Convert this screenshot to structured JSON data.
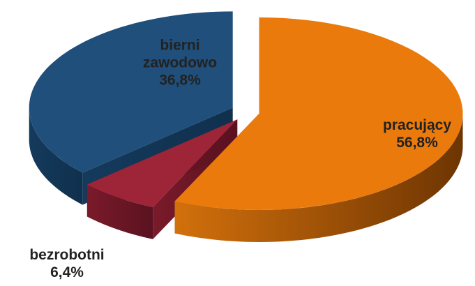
{
  "chart_data": {
    "type": "pie",
    "categories": [
      "pracujący",
      "bezrobotni",
      "bierni zawodowo"
    ],
    "values": [
      56.8,
      6.4,
      36.8
    ],
    "value_labels": [
      "56,8%",
      "6,4%",
      "36,8%"
    ],
    "colors": [
      "#ea7a0c",
      "#9e2537",
      "#1f4f7a"
    ]
  }
}
